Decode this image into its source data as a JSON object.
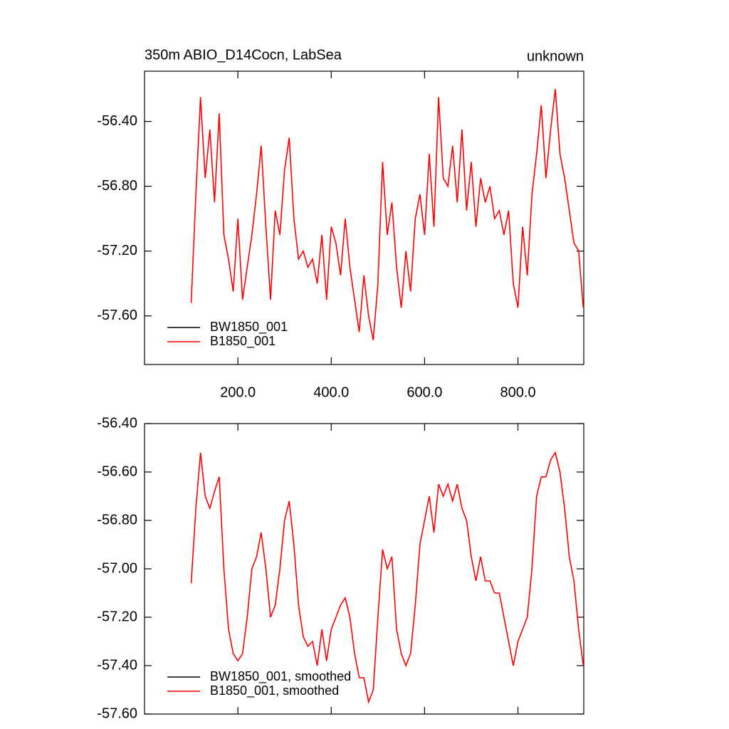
{
  "chart_data": [
    {
      "type": "line",
      "title": "350m ABIO_D14Cocn, LabSea",
      "right_title": "unknown",
      "legend": "lower left",
      "xlim": [
        0,
        941
      ],
      "xticks": [
        {
          "value": 200,
          "label": "200.0"
        },
        {
          "value": 400,
          "label": "400.0"
        },
        {
          "value": 600,
          "label": "600.0"
        },
        {
          "value": 800,
          "label": "800.0"
        }
      ],
      "ylim": [
        -57.9,
        -56.09
      ],
      "yticks": [
        {
          "value": -56.4,
          "label": "-56.40"
        },
        {
          "value": -56.8,
          "label": "-56.80"
        },
        {
          "value": -57.2,
          "label": "-57.20"
        },
        {
          "value": -57.6,
          "label": "-57.60"
        }
      ],
      "x": [
        100,
        110,
        120,
        130,
        140,
        150,
        160,
        170,
        180,
        190,
        200,
        210,
        220,
        230,
        240,
        250,
        260,
        270,
        280,
        290,
        300,
        310,
        320,
        330,
        340,
        350,
        360,
        370,
        380,
        390,
        400,
        410,
        420,
        430,
        440,
        450,
        460,
        470,
        480,
        490,
        500,
        510,
        520,
        530,
        540,
        550,
        560,
        570,
        580,
        590,
        600,
        610,
        620,
        630,
        640,
        650,
        660,
        670,
        680,
        690,
        700,
        710,
        720,
        730,
        740,
        750,
        760,
        770,
        780,
        790,
        800,
        810,
        820,
        830,
        840,
        850,
        860,
        870,
        880,
        890,
        900,
        910,
        920,
        930,
        940
      ],
      "series": [
        {
          "name": "BW1850_001",
          "color": "#000000",
          "values": [
            null,
            null,
            null,
            null,
            null,
            null,
            null,
            null,
            null,
            null,
            null,
            null,
            null,
            null,
            null,
            null,
            null,
            null,
            null,
            null,
            null,
            null,
            null,
            null,
            null,
            null,
            null,
            null,
            null,
            null,
            null,
            null,
            null,
            null,
            null,
            null,
            null,
            null,
            null,
            null,
            null,
            null,
            null,
            null,
            null,
            null,
            null,
            null,
            null,
            null,
            null,
            null,
            null,
            null,
            null,
            null,
            null,
            null,
            null,
            null,
            null,
            null,
            null,
            null,
            null,
            null,
            null,
            null,
            null,
            null,
            null,
            null,
            null,
            null,
            null,
            null,
            null,
            null,
            null,
            null,
            null,
            null,
            null,
            null,
            null
          ]
        },
        {
          "name": "B1850_001",
          "color": "#ff0000",
          "values": [
            -57.52,
            -56.85,
            -56.25,
            -56.75,
            -56.45,
            -56.9,
            -56.35,
            -57.1,
            -57.25,
            -57.45,
            -57.0,
            -57.5,
            -57.3,
            -57.1,
            -56.85,
            -56.55,
            -57.05,
            -57.5,
            -56.95,
            -57.1,
            -56.7,
            -56.5,
            -57.0,
            -57.25,
            -57.2,
            -57.3,
            -57.25,
            -57.4,
            -57.1,
            -57.5,
            -57.05,
            -57.15,
            -57.35,
            -57.0,
            -57.3,
            -57.5,
            -57.7,
            -57.35,
            -57.6,
            -57.75,
            -57.4,
            -56.65,
            -57.1,
            -56.9,
            -57.3,
            -57.55,
            -57.2,
            -57.45,
            -57.0,
            -56.85,
            -57.1,
            -56.6,
            -57.05,
            -56.25,
            -56.75,
            -56.8,
            -56.55,
            -56.9,
            -56.45,
            -56.95,
            -56.65,
            -57.05,
            -56.75,
            -56.9,
            -56.8,
            -57.0,
            -56.95,
            -57.1,
            -56.95,
            -57.4,
            -57.55,
            -57.05,
            -57.35,
            -56.85,
            -56.6,
            -56.3,
            -56.75,
            -56.45,
            -56.2,
            -56.6,
            -56.75,
            -56.95,
            -57.15,
            -57.2,
            -57.55
          ]
        }
      ]
    },
    {
      "type": "line",
      "legend": "lower left",
      "xlim": [
        0,
        941
      ],
      "ylim": [
        -57.6,
        -56.4
      ],
      "yticks": [
        {
          "value": -56.4,
          "label": "-56.40"
        },
        {
          "value": -56.6,
          "label": "-56.60"
        },
        {
          "value": -56.8,
          "label": "-56.80"
        },
        {
          "value": -57.0,
          "label": "-57.00"
        },
        {
          "value": -57.2,
          "label": "-57.20"
        },
        {
          "value": -57.4,
          "label": "-57.40"
        },
        {
          "value": -57.6,
          "label": "-57.60"
        }
      ],
      "x": [
        100,
        110,
        120,
        130,
        140,
        150,
        160,
        170,
        180,
        190,
        200,
        210,
        220,
        230,
        240,
        250,
        260,
        270,
        280,
        290,
        300,
        310,
        320,
        330,
        340,
        350,
        360,
        370,
        380,
        390,
        400,
        410,
        420,
        430,
        440,
        450,
        460,
        470,
        480,
        490,
        500,
        510,
        520,
        530,
        540,
        550,
        560,
        570,
        580,
        590,
        600,
        610,
        620,
        630,
        640,
        650,
        660,
        670,
        680,
        690,
        700,
        710,
        720,
        730,
        740,
        750,
        760,
        770,
        780,
        790,
        800,
        810,
        820,
        830,
        840,
        850,
        860,
        870,
        880,
        890,
        900,
        910,
        920,
        930,
        940
      ],
      "series": [
        {
          "name": "BW1850_001, smoothed",
          "color": "#000000",
          "values": [
            null,
            null,
            null,
            null,
            null,
            null,
            null,
            null,
            null,
            null,
            null,
            null,
            null,
            null,
            null,
            null,
            null,
            null,
            null,
            null,
            null,
            null,
            null,
            null,
            null,
            null,
            null,
            null,
            null,
            null,
            null,
            null,
            null,
            null,
            null,
            null,
            null,
            null,
            null,
            null,
            null,
            null,
            null,
            null,
            null,
            null,
            null,
            null,
            null,
            null,
            null,
            null,
            null,
            null,
            null,
            null,
            null,
            null,
            null,
            null,
            null,
            null,
            null,
            null,
            null,
            null,
            null,
            null,
            null,
            null,
            null,
            null,
            null,
            null,
            null,
            null,
            null,
            null,
            null,
            null,
            null,
            null,
            null,
            null,
            null
          ]
        },
        {
          "name": "B1850_001, smoothed",
          "color": "#ff0000",
          "values": [
            -57.06,
            -56.75,
            -56.52,
            -56.7,
            -56.75,
            -56.68,
            -56.62,
            -57.0,
            -57.25,
            -57.35,
            -57.38,
            -57.35,
            -57.2,
            -57.0,
            -56.95,
            -56.85,
            -57.0,
            -57.2,
            -57.15,
            -57.0,
            -56.8,
            -56.72,
            -56.9,
            -57.15,
            -57.28,
            -57.32,
            -57.3,
            -57.4,
            -57.25,
            -57.38,
            -57.25,
            -57.2,
            -57.15,
            -57.12,
            -57.2,
            -57.35,
            -57.45,
            -57.45,
            -57.55,
            -57.5,
            -57.2,
            -56.92,
            -57.0,
            -56.95,
            -57.25,
            -57.35,
            -57.4,
            -57.35,
            -57.15,
            -56.9,
            -56.8,
            -56.7,
            -56.85,
            -56.65,
            -56.7,
            -56.65,
            -56.72,
            -56.65,
            -56.75,
            -56.8,
            -56.95,
            -57.05,
            -56.95,
            -57.05,
            -57.05,
            -57.1,
            -57.1,
            -57.2,
            -57.3,
            -57.4,
            -57.3,
            -57.25,
            -57.2,
            -57.0,
            -56.7,
            -56.62,
            -56.62,
            -56.55,
            -56.52,
            -56.6,
            -56.75,
            -56.95,
            -57.05,
            -57.25,
            -57.4
          ]
        }
      ]
    }
  ]
}
